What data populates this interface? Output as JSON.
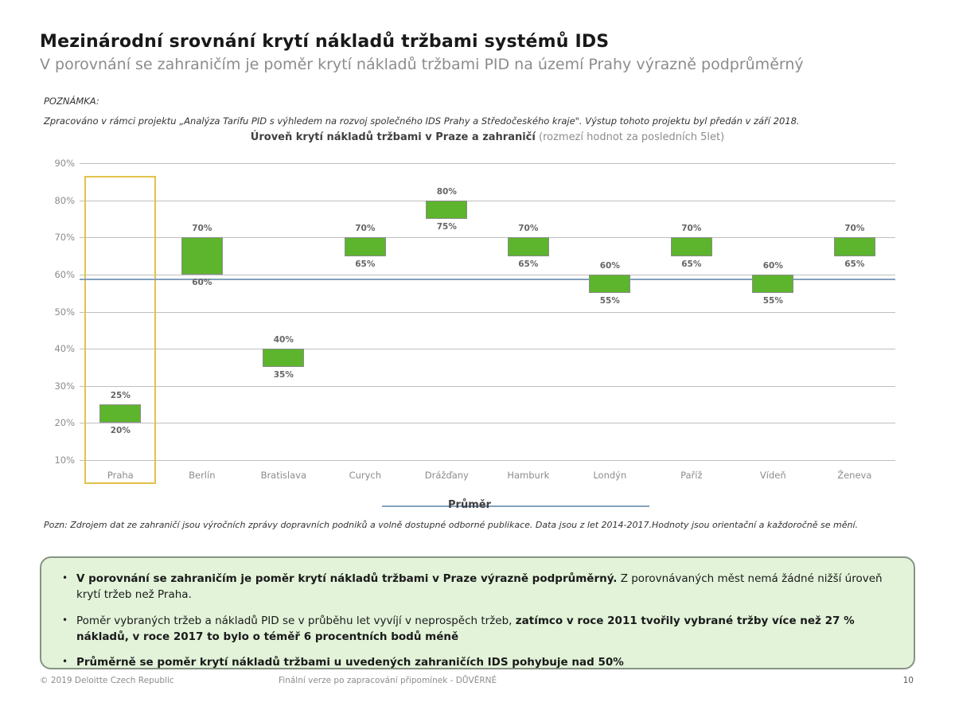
{
  "slide": {
    "title": "Mezinárodní srovnání krytí nákladů tržbami systémů IDS",
    "subtitle": "V porovnání se zahraničím je poměr krytí nákladů tržbami PID na území Prahy výrazně podprůměrný",
    "note_label": "POZNÁMKA:",
    "note_body": "Zpracováno v rámci projektu „Analýza Tarifu PID s výhledem na rozvoj společného IDS Prahy a Středočeského kraje\". Výstup tohoto projektu byl předán v září 2018.",
    "source_note": "Pozn: Zdrojem dat ze zahraničí jsou výročních zprávy dopravních podniků a volně dostupné odborné publikace. Data jsou z let 2014-2017.Hodnoty jsou orientační a každoročně se mění."
  },
  "chart_data": {
    "type": "bar",
    "variant": "floating-range-bars",
    "title": "Úroveň krytí nákladů tržbami v Praze a zahraničí",
    "title_suffix": " (rozmezí hodnot za posledních 5let)",
    "categories": [
      "Praha",
      "Berlín",
      "Bratislava",
      "Curych",
      "Drážďany",
      "Hamburk",
      "Londýn",
      "Paříž",
      "Vídeň",
      "Ženeva"
    ],
    "series": [
      {
        "name": "rozmezí hodnot",
        "ranges": [
          [
            20,
            25
          ],
          [
            60,
            70
          ],
          [
            35,
            40
          ],
          [
            65,
            70
          ],
          [
            75,
            80
          ],
          [
            65,
            70
          ],
          [
            55,
            60
          ],
          [
            65,
            70
          ],
          [
            55,
            60
          ],
          [
            65,
            70
          ]
        ]
      }
    ],
    "average_line": {
      "label": "Průměr",
      "value": 59
    },
    "highlight_category": "Praha",
    "ylim": [
      10,
      90
    ],
    "yticks": [
      90,
      80,
      70,
      60,
      50,
      40,
      30,
      20,
      10
    ],
    "tick_suffix": "%",
    "grid": true,
    "legend_position": "bottom-center",
    "colors": {
      "bar_fill": "#5CB52C",
      "bar_border": "#8c8c8c",
      "highlight_border": "#E2C24A",
      "average_line": "#84A1BE",
      "gridline": "#bfbfbf"
    }
  },
  "callout": {
    "bullets": [
      [
        {
          "text": "V porovnání se zahraničím je poměr krytí nákladů tržbami v Praze výrazně podprůměrný.",
          "bold": true
        },
        {
          "text": " Z porovnávaných měst nemá žádné nižší úroveň krytí tržeb než Praha.",
          "bold": false
        }
      ],
      [
        {
          "text": "Poměr vybraných tržeb a nákladů PID se v průběhu let vyvíjí v neprospěch tržeb, ",
          "bold": false
        },
        {
          "text": "zatímco v roce 2011 tvořily vybrané tržby více než 27 % nákladů, v roce 2017 to bylo o téměř 6 procentních bodů méně",
          "bold": true
        }
      ],
      [
        {
          "text": "Průměrně se poměr krytí nákladů tržbami u uvedených zahraničích IDS pohybuje nad 50%",
          "bold": true
        }
      ]
    ]
  },
  "footer": {
    "copyright": "© 2019 Deloitte Czech Republic",
    "status": "Finální verze po zapracování připomínek - DŮVĚRNÉ",
    "page_number": "10"
  }
}
